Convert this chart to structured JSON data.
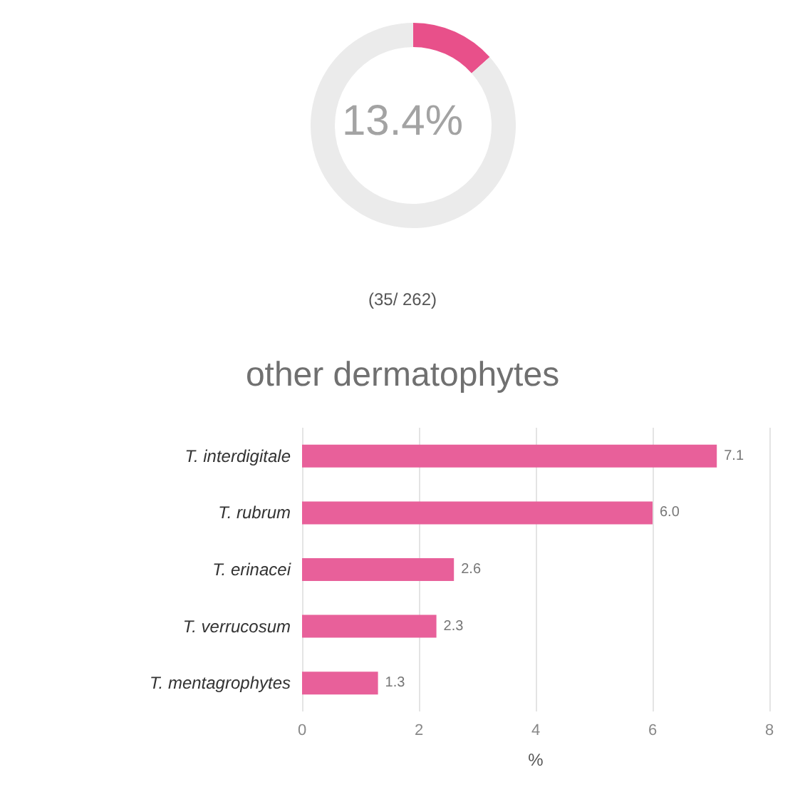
{
  "chart_data": [
    {
      "type": "donut",
      "categories": [
        null,
        null
      ],
      "values": [
        13.4,
        86.6
      ],
      "colors": [
        "#e8508a",
        "#ebebeb"
      ],
      "annotations": [
        "13.4%",
        "(35/ 262)"
      ]
    },
    {
      "type": "bar",
      "orientation": "horizontal",
      "title": "other dermatophytes",
      "xlabel": "%",
      "categories": [
        "T. interdigitale",
        "T. rubrum",
        "T. erinacei",
        "T. verrucosum",
        "T. mentagrophytes"
      ],
      "values": [
        7.1,
        6.0,
        2.6,
        2.3,
        1.3
      ],
      "value_labels": [
        "7.1",
        "6.0",
        "2.6",
        "2.3",
        "1.3"
      ],
      "color": "#e8609a",
      "xlim": [
        0,
        8
      ],
      "xticks": [
        0,
        2,
        4,
        6,
        8
      ],
      "grid": "x"
    }
  ]
}
